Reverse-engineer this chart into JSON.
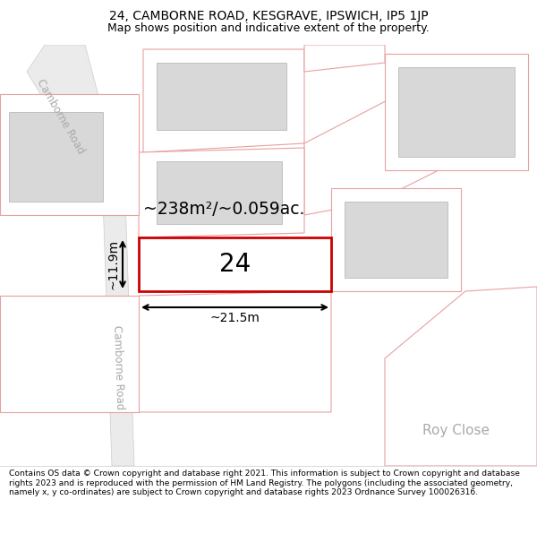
{
  "title_line1": "24, CAMBORNE ROAD, KESGRAVE, IPSWICH, IP5 1JP",
  "title_line2": "Map shows position and indicative extent of the property.",
  "footer_text": "Contains OS data © Crown copyright and database right 2021. This information is subject to Crown copyright and database rights 2023 and is reproduced with the permission of HM Land Registry. The polygons (including the associated geometry, namely x, y co-ordinates) are subject to Crown copyright and database rights 2023 Ordnance Survey 100026316.",
  "plot_outline_color": "#cc0000",
  "other_outline_color": "#e8a0a0",
  "building_fill": "#d8d8d8",
  "road_fill": "#ebebeb",
  "road_edge": "#cccccc",
  "label_24": "24",
  "area_label": "~238m²/~0.059ac.",
  "dim_width": "~21.5m",
  "dim_height": "~11.9m",
  "road_label_upper": "Camborne Road",
  "road_label_lower": "Camborne Road",
  "roy_close_label": "Roy Close"
}
